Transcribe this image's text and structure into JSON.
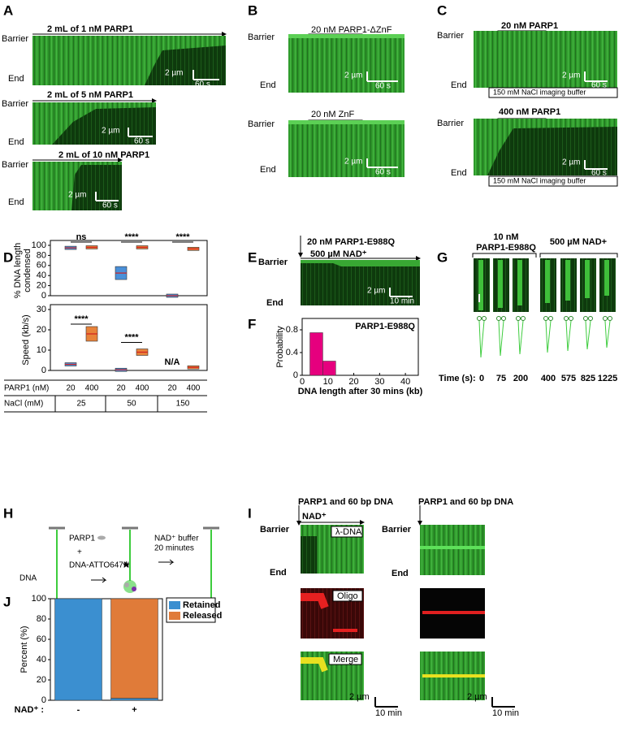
{
  "barrier": "Barrier",
  "end": "End",
  "scale_um": "2 µm",
  "scale_60s": "60 s",
  "scale_10min": "10 min",
  "panels": {
    "A": {
      "label": "A",
      "conditions": [
        "2 mL of 1 nM PARP1",
        "2 mL of 5 nM PARP1",
        "2 mL of 10 nM PARP1"
      ]
    },
    "B": {
      "label": "B",
      "conditions": [
        "20 nM PARP1-ΔZnF",
        "20 nM ZnF"
      ]
    },
    "C": {
      "label": "C",
      "conditions": [
        "20 nM PARP1",
        "400 nM PARP1"
      ],
      "buffer": "150 mM NaCl imaging buffer"
    },
    "D": {
      "label": "D",
      "table": {
        "rows": [
          [
            "PARP1 (nM)",
            "20",
            "400",
            "20",
            "400",
            "20",
            "400"
          ],
          [
            "NaCl (mM)",
            "25",
            "50",
            "150"
          ]
        ]
      }
    },
    "E": {
      "label": "E",
      "conditions": [
        "20 nM PARP1-E988Q",
        "500 µM NAD⁺"
      ]
    },
    "F": {
      "label": "F"
    },
    "G": {
      "label": "G",
      "conditions": [
        "10 nM",
        "PARP1-E988Q",
        "500 µM NAD+"
      ],
      "time_label": "Time (s):",
      "times": [
        "0",
        "75",
        "200",
        "400",
        "575",
        "825",
        "1225"
      ]
    },
    "H": {
      "label": "H",
      "texts": [
        "PARP1",
        "+",
        "DNA-ATTO647N",
        "DNA",
        "NAD⁺ buffer",
        "20 minutes"
      ]
    },
    "I": {
      "label": "I",
      "conditions": [
        "PARP1 and 60 bp DNA",
        "NAD⁺",
        "PARP1 and 60 bp DNA"
      ],
      "channels": [
        "λ-DNA",
        "Oligo",
        "Merge"
      ]
    },
    "J": {
      "label": "J"
    }
  },
  "chart_data": [
    {
      "type": "box",
      "ylabel": [
        "% DNA length",
        "condensed"
      ],
      "values": [
        95,
        96,
        45,
        96,
        0,
        93
      ],
      "colors": [
        "#4a90d9",
        "#e8833a",
        "#4a90d9",
        "#e8833a",
        "#4a90d9",
        "#e8833a"
      ],
      "ylim": [
        0,
        100
      ],
      "yticks": [
        0,
        20,
        40,
        60,
        80,
        100
      ],
      "annotations": [
        "ns",
        "****",
        "****"
      ]
    },
    {
      "type": "box",
      "ylabel": [
        "Speed (kb/s)"
      ],
      "values": [
        3,
        18,
        0.3,
        9,
        null,
        1.5
      ],
      "colors": [
        "#4a90d9",
        "#e8833a",
        "#4a90d9",
        "#e8833a",
        "#4a90d9",
        "#e8833a"
      ],
      "ylim": [
        0,
        30
      ],
      "yticks": [
        0,
        10,
        20,
        30
      ],
      "annotations": [
        "****",
        "****",
        "N/A"
      ]
    },
    {
      "type": "histogram",
      "ylabel": [
        "Probability"
      ],
      "xlabel": "DNA length after 30 mins (kb)",
      "annotation": "PARP1-E988Q",
      "bins": [
        3,
        8,
        13
      ],
      "values": [
        0.75,
        0.25
      ],
      "color": "#e6007e",
      "xlim": [
        0,
        45
      ],
      "xticks": [
        0,
        10,
        20,
        30,
        40
      ],
      "ylim": [
        0,
        1
      ],
      "yticks": [
        0,
        0.4,
        0.8
      ]
    },
    {
      "type": "stacked_bar",
      "ylabel": [
        "Percent (%)"
      ],
      "xlabel": "NAD⁺ :",
      "categories": [
        "-",
        "+"
      ],
      "series": [
        {
          "name": "Retained",
          "color": "#3b8fd0",
          "values": [
            100,
            2
          ]
        },
        {
          "name": "Released",
          "color": "#e07b39",
          "values": [
            0,
            98
          ]
        }
      ],
      "ylim": [
        0,
        100
      ],
      "yticks": [
        0,
        20,
        40,
        60,
        80,
        100
      ],
      "legend": "upper right"
    }
  ]
}
